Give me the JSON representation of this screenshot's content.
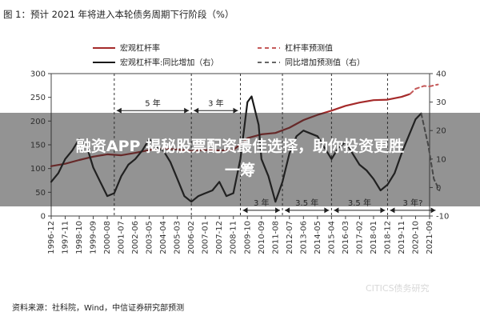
{
  "figure_caption": "图 1：预计 2021 年将进入本轮债务周期下行阶段（%）",
  "source_note": "资料来源：社科院，Wind，中信证券研究部预测",
  "watermark": "CITICS债务研究",
  "overlay_title_line1": "融资APP 揭秘股票配资最佳选择，助你投资更胜",
  "overlay_title_line2": "一筹",
  "chart_data": {
    "type": "line",
    "x_ticks": [
      "1996-12",
      "1997-11",
      "1998-10",
      "1999-09",
      "2000-08",
      "2001-07",
      "2002-06",
      "2003-05",
      "2004-04",
      "2005-03",
      "2006-02",
      "2007-01",
      "2007-12",
      "2008-11",
      "2009-10",
      "2010-09",
      "2011-08",
      "2012-07",
      "2013-06",
      "2014-05",
      "2015-04",
      "2016-03",
      "2017-02",
      "2018-01",
      "2018-12",
      "2019-11",
      "2020-10",
      "2021-09"
    ],
    "y_left": {
      "ticks": [
        0,
        50,
        100,
        150,
        200,
        250,
        300
      ],
      "ylim": [
        0,
        300
      ]
    },
    "y_right": {
      "ticks": [
        -10,
        0,
        10,
        20,
        30,
        40
      ],
      "ylim": [
        -10,
        40
      ]
    },
    "legend_position": "top",
    "series": [
      {
        "name": "宏观杠杆率",
        "axis": "left",
        "style": "solid",
        "color": "#a52a2a",
        "points": [
          [
            0,
            105
          ],
          [
            1,
            110
          ],
          [
            2,
            118
          ],
          [
            3,
            125
          ],
          [
            4,
            130
          ],
          [
            5,
            128
          ],
          [
            6,
            133
          ],
          [
            7,
            139
          ],
          [
            8,
            142
          ],
          [
            9,
            140
          ],
          [
            10,
            137
          ],
          [
            11,
            139
          ],
          [
            12,
            138
          ],
          [
            13,
            139
          ],
          [
            14,
            164
          ],
          [
            15,
            172
          ],
          [
            16,
            175
          ],
          [
            17,
            186
          ],
          [
            18,
            202
          ],
          [
            19,
            213
          ],
          [
            20,
            222
          ],
          [
            21,
            232
          ],
          [
            22,
            239
          ],
          [
            23,
            244
          ],
          [
            24,
            245
          ],
          [
            25,
            251
          ],
          [
            25.6,
            257
          ]
        ]
      },
      {
        "name": "杠杆率预测值",
        "axis": "left",
        "style": "dashed",
        "color": "#c55a5a",
        "points": [
          [
            25.6,
            257
          ],
          [
            26,
            268
          ],
          [
            26.6,
            274
          ],
          [
            27,
            273
          ],
          [
            27.6,
            277
          ]
        ]
      },
      {
        "name": "宏观杠杆率:同比增加（右）",
        "axis": "right",
        "style": "solid",
        "color": "#1a1a1a",
        "points": [
          [
            0,
            2
          ],
          [
            0.5,
            5
          ],
          [
            1,
            10
          ],
          [
            1.5,
            13
          ],
          [
            2,
            17
          ],
          [
            2.5,
            15
          ],
          [
            3,
            7
          ],
          [
            3.5,
            2
          ],
          [
            4,
            -3
          ],
          [
            4.5,
            -2
          ],
          [
            5,
            4
          ],
          [
            5.5,
            8
          ],
          [
            6,
            10
          ],
          [
            6.5,
            13
          ],
          [
            7,
            17
          ],
          [
            7.5,
            14
          ],
          [
            8,
            13
          ],
          [
            8.5,
            9
          ],
          [
            9,
            3
          ],
          [
            9.5,
            -3
          ],
          [
            10,
            -5
          ],
          [
            10.5,
            -3
          ],
          [
            11,
            -2
          ],
          [
            11.5,
            -1
          ],
          [
            12,
            2
          ],
          [
            12.5,
            -3
          ],
          [
            13,
            -2
          ],
          [
            13.5,
            10
          ],
          [
            14,
            30
          ],
          [
            14.3,
            32
          ],
          [
            14.8,
            22
          ],
          [
            15,
            10
          ],
          [
            15.5,
            4
          ],
          [
            16,
            -5
          ],
          [
            16.5,
            2
          ],
          [
            17,
            12
          ],
          [
            17.5,
            18
          ],
          [
            18,
            20
          ],
          [
            18.5,
            19
          ],
          [
            19,
            18
          ],
          [
            19.5,
            14
          ],
          [
            20,
            10
          ],
          [
            20.5,
            14
          ],
          [
            21,
            16
          ],
          [
            21.5,
            12
          ],
          [
            22,
            8
          ],
          [
            22.5,
            6
          ],
          [
            23,
            3
          ],
          [
            23.5,
            -1
          ],
          [
            24,
            1
          ],
          [
            24.5,
            5
          ],
          [
            25,
            12
          ],
          [
            25.5,
            18
          ],
          [
            26,
            24
          ],
          [
            26.4,
            26
          ]
        ]
      },
      {
        "name": "同比增加预测值（右）",
        "axis": "right",
        "style": "dashed",
        "color": "#666666",
        "points": [
          [
            26.4,
            26
          ],
          [
            26.9,
            15
          ],
          [
            27.3,
            3
          ],
          [
            27.7,
            -1
          ]
        ]
      }
    ],
    "cycle_lines_x": [
      4.5,
      10,
      13.5,
      16.5,
      20,
      24
    ],
    "annotations": [
      {
        "label": "5 年",
        "x0": 4.5,
        "x1": 10,
        "y_right": 27
      },
      {
        "label": "3 年",
        "x0": 10,
        "x1": 13.5,
        "y_right": 27
      },
      {
        "label": "3 年",
        "x0": 13.5,
        "x1": 16.5,
        "y_right": -8
      },
      {
        "label": "3.5 年",
        "x0": 16.5,
        "x1": 20,
        "y_right": -8
      },
      {
        "label": "3.5 年",
        "x0": 20,
        "x1": 24,
        "y_right": -8
      },
      {
        "label": "3 年?",
        "x0": 24,
        "x1": 27.6,
        "y_right": -8,
        "color": "#a52a2a"
      }
    ]
  }
}
